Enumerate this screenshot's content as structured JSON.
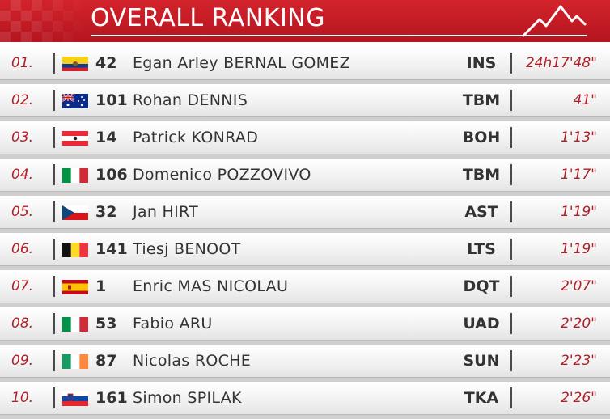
{
  "header": {
    "title": "OVERALL RANKING",
    "logo_icon": "mountain-icon"
  },
  "rows": [
    {
      "pos": "01.",
      "bib": "42",
      "name": "Egan Arley BERNAL GOMEZ",
      "team": "INS",
      "time": "24h17'48\"",
      "flag": "ecuador-flag-icon"
    },
    {
      "pos": "02.",
      "bib": "101",
      "name": "Rohan DENNIS",
      "team": "TBM",
      "time": "41\"",
      "flag": "australia-flag-icon"
    },
    {
      "pos": "03.",
      "bib": "14",
      "name": "Patrick KONRAD",
      "team": "BOH",
      "time": "1'13\"",
      "flag": "austria-flag-icon"
    },
    {
      "pos": "04.",
      "bib": "106",
      "name": "Domenico POZZOVIVO",
      "team": "TBM",
      "time": "1'17\"",
      "flag": "italy-flag-icon"
    },
    {
      "pos": "05.",
      "bib": "32",
      "name": "Jan HIRT",
      "team": "AST",
      "time": "1'19\"",
      "flag": "czech-flag-icon"
    },
    {
      "pos": "06.",
      "bib": "141",
      "name": "Tiesj BENOOT",
      "team": "LTS",
      "time": "1'19\"",
      "flag": "belgium-flag-icon"
    },
    {
      "pos": "07.",
      "bib": "1",
      "name": "Enric MAS NICOLAU",
      "team": "DQT",
      "time": "2'07\"",
      "flag": "spain-flag-icon"
    },
    {
      "pos": "08.",
      "bib": "53",
      "name": "Fabio ARU",
      "team": "UAD",
      "time": "2'20\"",
      "flag": "italy-flag-icon"
    },
    {
      "pos": "09.",
      "bib": "87",
      "name": "Nicolas ROCHE",
      "team": "SUN",
      "time": "2'23\"",
      "flag": "ireland-flag-icon"
    },
    {
      "pos": "10.",
      "bib": "161",
      "name": "Simon SPILAK",
      "team": "TKA",
      "time": "2'26\"",
      "flag": "slovenia-flag-icon"
    }
  ],
  "colors": {
    "header_red": "#c81e28",
    "accent_red": "#b21d27",
    "text": "#333333"
  }
}
